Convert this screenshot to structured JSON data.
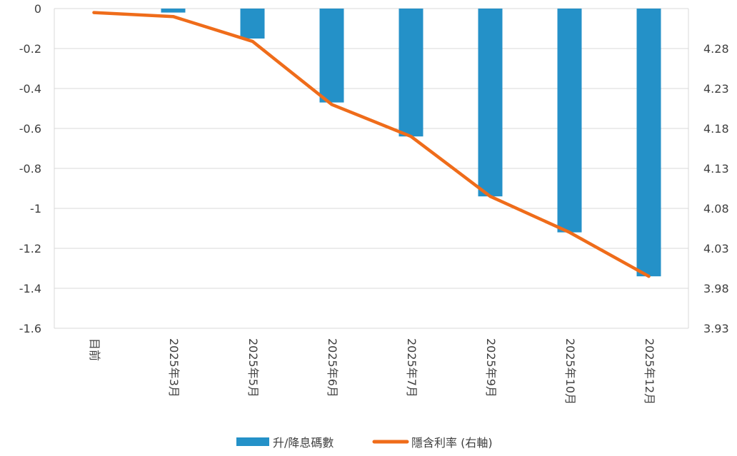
{
  "chart_data": {
    "type": "bar",
    "categories": [
      "目前",
      "2025年3月",
      "2025年5月",
      "2025年6月",
      "2025年7月",
      "2025年9月",
      "2025年10月",
      "2025年12月"
    ],
    "series": [
      {
        "name": "升/降息碼數",
        "type": "bar",
        "axis": "left",
        "color": "#2491c8",
        "values": [
          0,
          -0.02,
          -0.15,
          -0.47,
          -0.64,
          -0.94,
          -1.12,
          -1.34
        ]
      },
      {
        "name": "隱含利率 (右軸)",
        "type": "line",
        "axis": "right",
        "color": "#ef6c1a",
        "values": [
          4.325,
          4.32,
          4.289,
          4.21,
          4.17,
          4.095,
          4.05,
          3.995
        ]
      }
    ],
    "y_left": {
      "ylim": [
        -1.6,
        0
      ],
      "ticks": [
        0,
        -0.2,
        -0.4,
        -0.6,
        -0.8,
        -1,
        -1.2,
        -1.4,
        -1.6
      ],
      "tick_labels": [
        "0",
        "-0.2",
        "-0.4",
        "-0.6",
        "-0.8",
        "-1",
        "-1.2",
        "-1.4",
        "-1.6"
      ]
    },
    "y_right": {
      "ylim": [
        3.93,
        4.33
      ],
      "ticks": [
        4.28,
        4.23,
        4.18,
        4.13,
        4.08,
        4.03,
        3.98,
        3.93
      ],
      "tick_labels": [
        "4.28",
        "4.23",
        "4.18",
        "4.13",
        "4.08",
        "4.03",
        "3.98",
        "3.93"
      ]
    },
    "grid": true,
    "legend": "bottom",
    "title": "",
    "xlabel": "",
    "ylabel": ""
  }
}
